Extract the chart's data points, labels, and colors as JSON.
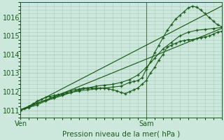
{
  "title": "Pression niveau de la mer( hPa )",
  "bg_color": "#cce8dc",
  "grid_color": "#aacaba",
  "line_color": "#1a5c1a",
  "xlim": [
    0,
    48
  ],
  "ylim": [
    1010.6,
    1016.8
  ],
  "yticks": [
    1011,
    1012,
    1013,
    1014,
    1015,
    1016
  ],
  "xtick_labels": [
    "Ven",
    "Sam"
  ],
  "xtick_pos": [
    0,
    30
  ],
  "vline_x": 30,
  "series": [
    {
      "x": [
        0,
        1,
        2,
        3,
        4,
        5,
        6,
        7,
        8,
        9,
        10,
        11,
        12,
        13,
        14,
        15,
        16,
        17,
        18,
        19,
        20,
        21,
        22,
        23,
        24,
        25,
        26,
        27,
        28,
        29,
        30,
        31,
        32,
        33,
        34,
        35,
        36,
        37,
        38,
        39,
        40,
        41,
        42,
        43,
        44,
        45,
        46,
        47,
        48
      ],
      "y": [
        1011.0,
        1011.1,
        1011.2,
        1011.35,
        1011.5,
        1011.6,
        1011.7,
        1011.75,
        1011.8,
        1011.85,
        1011.9,
        1011.95,
        1012.05,
        1012.1,
        1012.15,
        1012.2,
        1012.2,
        1012.2,
        1012.2,
        1012.2,
        1012.2,
        1012.15,
        1012.1,
        1012.05,
        1011.95,
        1011.9,
        1012.0,
        1012.1,
        1012.2,
        1012.4,
        1012.6,
        1013.0,
        1013.3,
        1013.7,
        1014.0,
        1014.4,
        1014.5,
        1014.6,
        1014.7,
        1014.75,
        1014.8,
        1014.8,
        1014.85,
        1014.9,
        1014.95,
        1015.0,
        1015.1,
        1015.2,
        1015.25
      ],
      "marker": true
    },
    {
      "x": [
        0,
        2,
        4,
        6,
        8,
        10,
        12,
        14,
        16,
        18,
        20,
        22,
        24,
        26,
        27,
        28,
        29,
        30,
        31,
        32,
        33,
        34,
        35,
        36,
        37,
        38,
        39,
        40,
        41,
        42,
        43,
        44,
        45,
        46,
        47,
        48
      ],
      "y": [
        1011.05,
        1011.2,
        1011.4,
        1011.55,
        1011.7,
        1011.85,
        1011.95,
        1012.05,
        1012.1,
        1012.15,
        1012.2,
        1012.25,
        1012.3,
        1012.5,
        1012.55,
        1012.6,
        1012.75,
        1013.2,
        1013.6,
        1014.1,
        1014.5,
        1014.9,
        1015.3,
        1015.6,
        1015.9,
        1016.1,
        1016.3,
        1016.5,
        1016.6,
        1016.55,
        1016.4,
        1016.2,
        1016.0,
        1015.8,
        1015.6,
        1015.5
      ],
      "marker": true
    },
    {
      "x": [
        0,
        2,
        4,
        6,
        8,
        10,
        12,
        14,
        16,
        18,
        20,
        22,
        24,
        26,
        28,
        30,
        32,
        34,
        36,
        38,
        40,
        42,
        44,
        46,
        48
      ],
      "y": [
        1011.0,
        1011.15,
        1011.3,
        1011.5,
        1011.65,
        1011.8,
        1011.95,
        1012.1,
        1012.2,
        1012.3,
        1012.35,
        1012.4,
        1012.5,
        1012.65,
        1012.9,
        1013.3,
        1013.8,
        1014.3,
        1014.65,
        1015.0,
        1015.2,
        1015.3,
        1015.35,
        1015.4,
        1015.45
      ],
      "marker": true
    },
    {
      "x": [
        0,
        48
      ],
      "y": [
        1011.0,
        1016.6
      ],
      "marker": false
    },
    {
      "x": [
        0,
        48
      ],
      "y": [
        1011.0,
        1015.4
      ],
      "marker": false
    }
  ]
}
